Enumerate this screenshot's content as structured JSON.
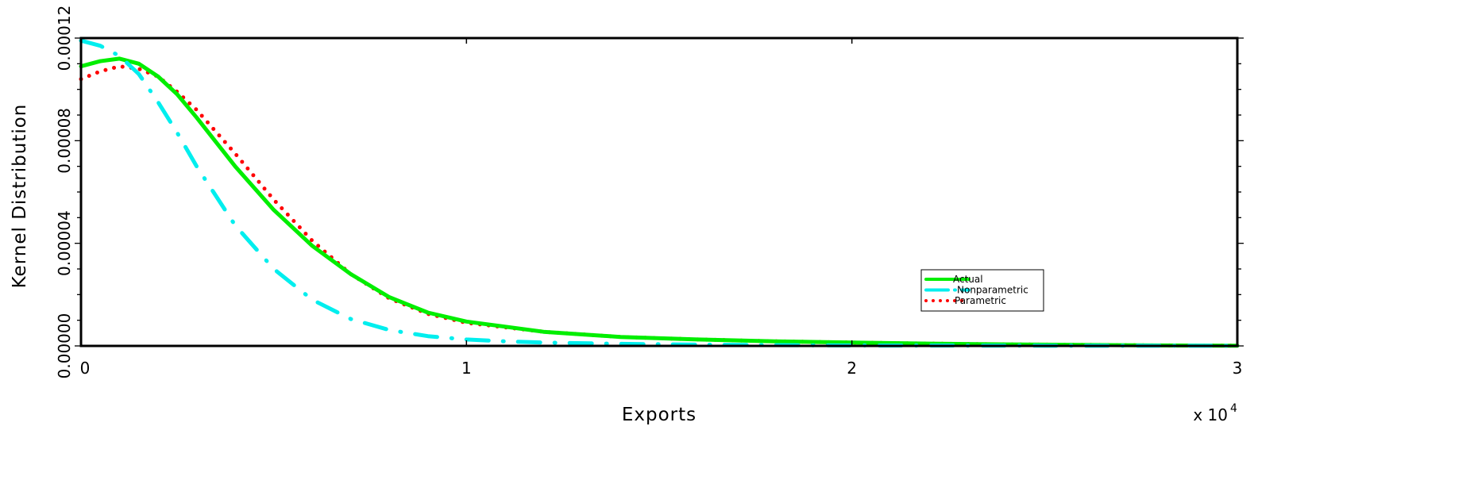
{
  "chart_data": {
    "type": "line",
    "xlabel": "Exports",
    "ylabel": "Kernel Distribution",
    "x_multiplier_label": "x 10",
    "x_multiplier_exponent": "4",
    "xlim": [
      0,
      30000
    ],
    "ylim": [
      0,
      0.00012
    ],
    "x_ticks": [
      0,
      10000,
      20000,
      30000
    ],
    "x_tick_labels": [
      "0",
      "1",
      "2",
      "3"
    ],
    "y_ticks": [
      0,
      4e-05,
      8e-05,
      0.00012
    ],
    "y_tick_labels": [
      "0.00000",
      "0.00004",
      "0.00008",
      "0.00012"
    ],
    "grid": false,
    "legend_position": "lower-right",
    "series": [
      {
        "name": "Actual",
        "color": "#00ee00",
        "style": "solid",
        "x": [
          0,
          500,
          1000,
          1500,
          2000,
          2500,
          3000,
          4000,
          5000,
          6000,
          7000,
          8000,
          9000,
          10000,
          12000,
          14000,
          16000,
          18000,
          20000,
          22000,
          24000,
          26000,
          28000,
          30000
        ],
        "y": [
          0.000109,
          0.000111,
          0.000112,
          0.00011,
          0.000105,
          9.8e-05,
          8.9e-05,
          7e-05,
          5.3e-05,
          3.9e-05,
          2.8e-05,
          1.9e-05,
          1.3e-05,
          9.5e-06,
          5.5e-06,
          3.5e-06,
          2.5e-06,
          1.8e-06,
          1.3e-06,
          9e-07,
          6e-07,
          4e-07,
          2e-07,
          1e-07
        ]
      },
      {
        "name": "Nonparametric",
        "color": "#00eeee",
        "style": "dash-dot",
        "x": [
          0,
          500,
          1000,
          1500,
          2000,
          2500,
          3000,
          4000,
          5000,
          6000,
          7000,
          8000,
          9000,
          10000,
          11000,
          12000,
          14000,
          16000,
          18000,
          20000,
          25000,
          30000
        ],
        "y": [
          0.000119,
          0.000117,
          0.000113,
          0.000106,
          9.5e-05,
          8.3e-05,
          7e-05,
          4.7e-05,
          3e-05,
          1.8e-05,
          1.05e-05,
          6.2e-06,
          3.8e-06,
          2.5e-06,
          1.8e-06,
          1.3e-06,
          8e-07,
          5e-07,
          3e-07,
          2e-07,
          1e-07,
          1e-07
        ]
      },
      {
        "name": "Parametric",
        "color": "#ff0000",
        "style": "dotted",
        "x": [
          0,
          500,
          1000,
          1500,
          2000,
          2500,
          3000,
          4000,
          5000,
          6000,
          7000,
          8000,
          9000,
          10000,
          12000,
          14000,
          16000,
          18000,
          20000,
          22000,
          24000,
          26000,
          28000,
          30000
        ],
        "y": [
          0.000104,
          0.000107,
          0.000109,
          0.000108,
          0.000105,
          9.9e-05,
          9.2e-05,
          7.5e-05,
          5.7e-05,
          4.1e-05,
          2.8e-05,
          1.85e-05,
          1.25e-05,
          9e-06,
          5.5e-06,
          3.5e-06,
          2.5e-06,
          1.8e-06,
          1.3e-06,
          9e-07,
          6e-07,
          4e-07,
          2e-07,
          1e-07
        ]
      }
    ]
  }
}
